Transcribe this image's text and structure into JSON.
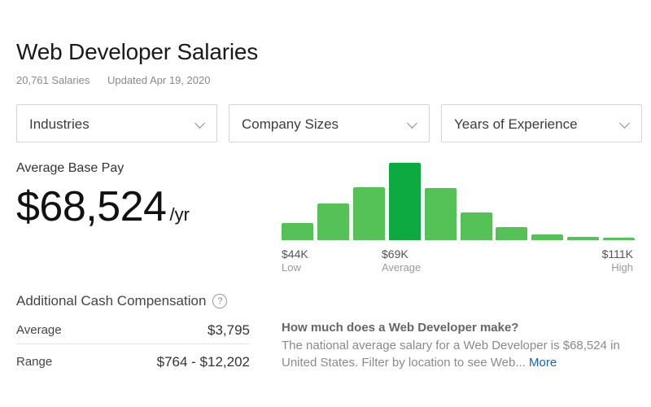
{
  "header": {
    "title": "Web Developer Salaries",
    "salaries_count": "20,761 Salaries",
    "updated": "Updated Apr 19, 2020"
  },
  "filters": [
    {
      "label": "Industries"
    },
    {
      "label": "Company Sizes"
    },
    {
      "label": "Years of Experience"
    }
  ],
  "base_pay": {
    "label": "Average Base Pay",
    "amount": "$68,524",
    "period": "/yr"
  },
  "distribution": {
    "low_value": "$44K",
    "low_label": "Low",
    "avg_value": "$69K",
    "avg_label": "Average",
    "high_value": "$111K",
    "high_label": "High",
    "colors": {
      "bar": "#54c256",
      "highlight": "#0caa41"
    }
  },
  "chart_data": {
    "type": "bar",
    "title": "Base pay distribution",
    "categories": [
      "1",
      "2",
      "3",
      "4",
      "5",
      "6",
      "7",
      "8",
      "9",
      "10"
    ],
    "values": [
      21,
      45,
      65,
      95,
      64,
      34,
      16,
      7,
      4,
      3
    ],
    "highlight_index": 3,
    "tick_labels": [
      {
        "value": "$44K",
        "label": "Low"
      },
      {
        "value": "$69K",
        "label": "Average"
      },
      {
        "value": "$111K",
        "label": "High"
      }
    ],
    "xlabel": "",
    "ylabel": "",
    "grid": false
  },
  "additional_comp": {
    "title": "Additional Cash Compensation",
    "help_icon": "?",
    "rows": [
      {
        "label": "Average",
        "value": "$3,795"
      },
      {
        "label": "Range",
        "value": "$764 - $12,202"
      }
    ]
  },
  "faq": {
    "question": "How much does a Web Developer make?",
    "answer": "The national average salary for a Web Developer is $68,524 in United States. Filter by location to see Web...",
    "more_label": "More"
  }
}
